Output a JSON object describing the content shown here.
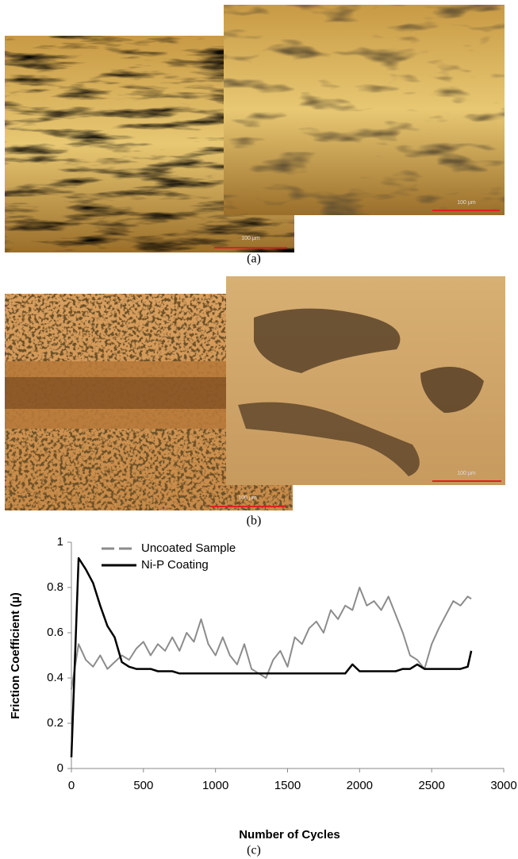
{
  "figure": {
    "panels": [
      {
        "label": "(a)",
        "scale_bars": [
          "100 µm",
          "100 µm"
        ]
      },
      {
        "label": "(b)",
        "scale_bars": [
          "100 µm",
          "100 µm"
        ]
      },
      {
        "label": "(c)"
      }
    ]
  },
  "chart_data": {
    "type": "line",
    "x_label": "Number of Cycles",
    "y_label": "Friction Coefficient (µ)",
    "x": [
      0,
      50,
      100,
      150,
      200,
      250,
      300,
      350,
      400,
      450,
      500,
      550,
      600,
      650,
      700,
      750,
      800,
      850,
      900,
      950,
      1000,
      1050,
      1100,
      1150,
      1200,
      1250,
      1300,
      1350,
      1400,
      1450,
      1500,
      1550,
      1600,
      1650,
      1700,
      1750,
      1800,
      1850,
      1900,
      1950,
      2000,
      2050,
      2100,
      2150,
      2200,
      2250,
      2300,
      2350,
      2400,
      2450,
      2500,
      2550,
      2600,
      2650,
      2700,
      2750,
      2775
    ],
    "series": [
      {
        "name": "Uncoated Sample",
        "color": "#8c8c8c",
        "dashed": true,
        "values": [
          0.35,
          0.55,
          0.48,
          0.45,
          0.5,
          0.44,
          0.47,
          0.5,
          0.48,
          0.53,
          0.56,
          0.5,
          0.55,
          0.52,
          0.58,
          0.52,
          0.6,
          0.56,
          0.66,
          0.55,
          0.5,
          0.58,
          0.5,
          0.46,
          0.55,
          0.44,
          0.42,
          0.4,
          0.48,
          0.52,
          0.45,
          0.58,
          0.55,
          0.62,
          0.65,
          0.6,
          0.7,
          0.66,
          0.72,
          0.7,
          0.8,
          0.72,
          0.74,
          0.7,
          0.76,
          0.68,
          0.6,
          0.5,
          0.48,
          0.44,
          0.55,
          0.62,
          0.68,
          0.74,
          0.72,
          0.76,
          0.75
        ]
      },
      {
        "name": "Ni-P Coating",
        "color": "#000000",
        "dashed": false,
        "values": [
          0.05,
          0.93,
          0.88,
          0.82,
          0.72,
          0.63,
          0.58,
          0.47,
          0.45,
          0.44,
          0.44,
          0.44,
          0.43,
          0.43,
          0.43,
          0.42,
          0.42,
          0.42,
          0.42,
          0.42,
          0.42,
          0.42,
          0.42,
          0.42,
          0.42,
          0.42,
          0.42,
          0.42,
          0.42,
          0.42,
          0.42,
          0.42,
          0.42,
          0.42,
          0.42,
          0.42,
          0.42,
          0.42,
          0.42,
          0.46,
          0.43,
          0.43,
          0.43,
          0.43,
          0.43,
          0.43,
          0.44,
          0.44,
          0.46,
          0.44,
          0.44,
          0.44,
          0.44,
          0.44,
          0.44,
          0.45,
          0.52
        ]
      }
    ],
    "xlim": [
      0,
      3000
    ],
    "xticks": [
      0,
      500,
      1000,
      1500,
      2000,
      2500,
      3000
    ],
    "ylim": [
      0,
      1
    ],
    "yticks": [
      0,
      0.2,
      0.4,
      0.6,
      0.8,
      1
    ],
    "legend": "top-left",
    "grid": false
  }
}
